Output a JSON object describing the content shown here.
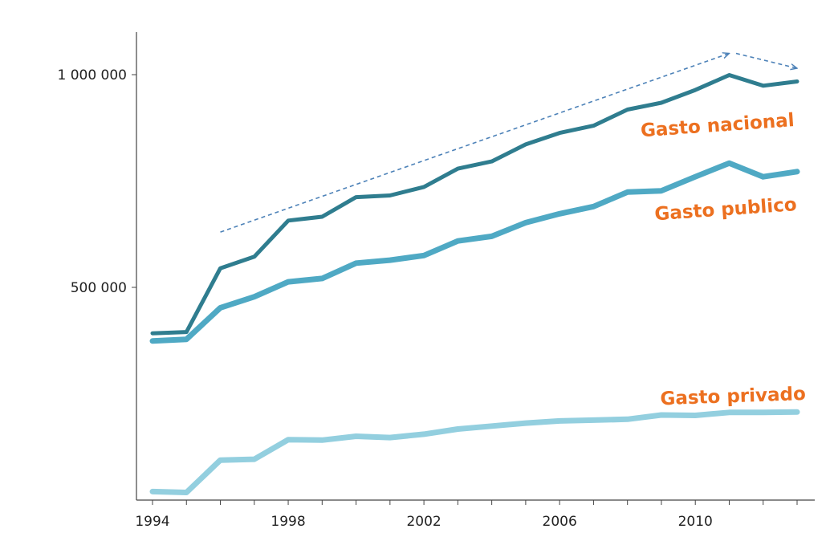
{
  "chart_data": {
    "type": "line",
    "title": "",
    "xlabel": "",
    "ylabel": "",
    "xlim": [
      1994,
      2013
    ],
    "ylim": [
      0,
      1100000
    ],
    "grid": false,
    "x": [
      1994,
      1995,
      1996,
      1997,
      1998,
      1999,
      2000,
      2001,
      2002,
      2003,
      2004,
      2005,
      2006,
      2007,
      2008,
      2009,
      2010,
      2011,
      2012,
      2013
    ],
    "x_ticks": [
      1994,
      1998,
      2002,
      2006,
      2010
    ],
    "x_tick_labels": [
      "1994",
      "1998",
      "2002",
      "2006",
      "2010"
    ],
    "y_ticks": [
      500000,
      1000000
    ],
    "y_tick_labels": [
      "500 000",
      "1 000 000"
    ],
    "series": [
      {
        "name": "Gasto nacional",
        "color": "#2f7d8f",
        "label_color": "#ec7020",
        "values": [
          392000,
          395000,
          545000,
          572000,
          657000,
          666000,
          712000,
          716000,
          736000,
          779000,
          796000,
          836000,
          863000,
          880000,
          918000,
          934000,
          964000,
          999000,
          974000,
          984000
        ]
      },
      {
        "name": "Gasto publico",
        "color": "#4fa9c4",
        "label_color": "#ec7020",
        "values": [
          374000,
          378000,
          452000,
          478000,
          513000,
          521000,
          557000,
          564000,
          575000,
          609000,
          620000,
          652000,
          673000,
          690000,
          724000,
          727000,
          760000,
          792000,
          760000,
          772000
        ]
      },
      {
        "name": "Gasto privado",
        "color": "#93cfdf",
        "label_color": "#ec7020",
        "values": [
          20000,
          18000,
          94000,
          96000,
          142000,
          141000,
          150000,
          147000,
          155000,
          167000,
          174000,
          181000,
          186000,
          188000,
          190000,
          200000,
          199000,
          206000,
          206000,
          207000
        ]
      }
    ],
    "annotations": {
      "trend_arrow_up": {
        "from": [
          1996,
          630000
        ],
        "to": [
          2011,
          1050000
        ],
        "style": "dashed",
        "color": "#4d82b8"
      },
      "trend_arrow_down": {
        "from": [
          2011.2,
          1050000
        ],
        "to": [
          2013,
          1015000
        ],
        "style": "dashed",
        "color": "#4d82b8"
      }
    }
  }
}
